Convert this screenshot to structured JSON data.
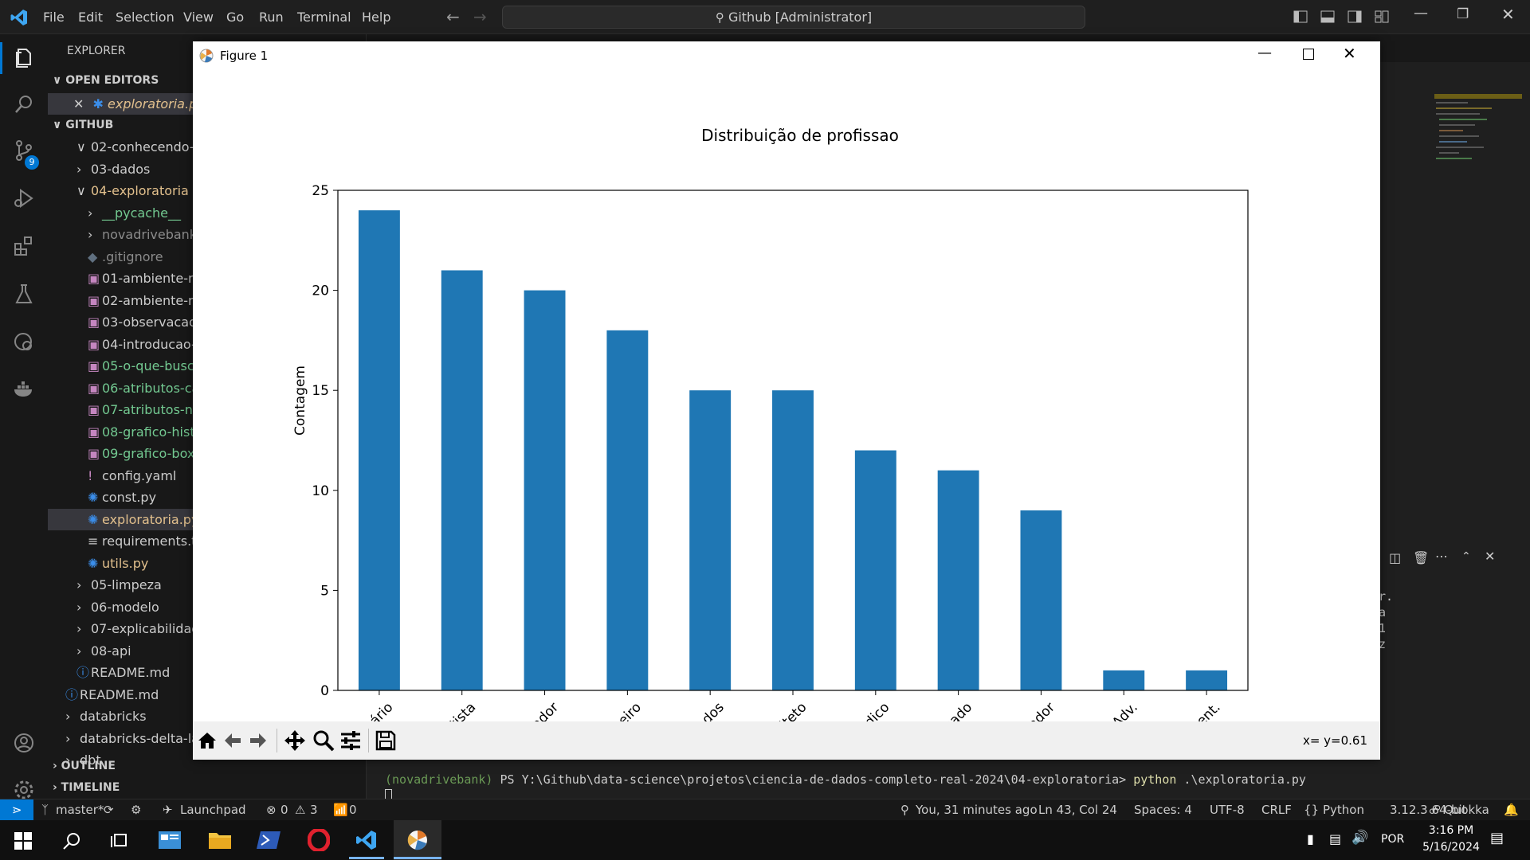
{
  "titlebar": {
    "menus": [
      "File",
      "Edit",
      "Selection",
      "View",
      "Go",
      "Run",
      "Terminal",
      "Help"
    ],
    "command_center": "Github [Administrator]"
  },
  "activity": {
    "scm_badge": "9"
  },
  "sidebar": {
    "explorer_label": "EXPLORER",
    "open_editors_label": "OPEN EDITORS",
    "open_file": "exploratoria.py",
    "root_label": "GITHUB",
    "items": [
      {
        "label": "02-conhecendo-",
        "type": "folder-open"
      },
      {
        "label": "03-dados",
        "type": "folder"
      },
      {
        "label": "04-exploratoria",
        "type": "folder-open"
      },
      {
        "label": "__pycache__",
        "type": "folder"
      },
      {
        "label": "novadrivebank",
        "type": "folder"
      },
      {
        "label": ".gitignore",
        "type": "file"
      },
      {
        "label": "01-ambiente-n",
        "type": "nb"
      },
      {
        "label": "02-ambiente-n",
        "type": "nb"
      },
      {
        "label": "03-observacao.",
        "type": "nb"
      },
      {
        "label": "04-introducao-",
        "type": "nb"
      },
      {
        "label": "05-o-que-busc",
        "type": "nb"
      },
      {
        "label": "06-atributos-ca",
        "type": "nb"
      },
      {
        "label": "07-atributos-nu",
        "type": "nb"
      },
      {
        "label": "08-grafico-histo",
        "type": "nb"
      },
      {
        "label": "09-grafico-boxp",
        "type": "nb"
      },
      {
        "label": "config.yaml",
        "type": "yaml"
      },
      {
        "label": "const.py",
        "type": "py"
      },
      {
        "label": "exploratoria.py",
        "type": "py"
      },
      {
        "label": "requirements.tx",
        "type": "txt"
      },
      {
        "label": "utils.py",
        "type": "py"
      },
      {
        "label": "05-limpeza",
        "type": "folder"
      },
      {
        "label": "06-modelo",
        "type": "folder"
      },
      {
        "label": "07-explicabilidad",
        "type": "folder"
      },
      {
        "label": "08-api",
        "type": "folder"
      },
      {
        "label": "README.md",
        "type": "info"
      },
      {
        "label": "README.md",
        "type": "info"
      },
      {
        "label": "databricks",
        "type": "folder"
      },
      {
        "label": "databricks-delta-lak",
        "type": "folder"
      },
      {
        "label": "dbt",
        "type": "folder"
      }
    ],
    "outline_label": "OUTLINE",
    "timeline_label": "TIMELINE"
  },
  "terminal": {
    "line1_env": "(novadrivebank)",
    "line1_prompt": " PS Y:\\Github\\data-science\\projetos\\ciencia-de-dados-completo-real-2024\\04-exploratoria> ",
    "line1_cmd": "python",
    "line1_arg": " .\\exploratoria.py",
    "right_fragments": [
      "r.",
      "a",
      "1",
      "z"
    ]
  },
  "figure": {
    "title": "Figure 1",
    "coords": "x= y=0.61"
  },
  "chart_data": {
    "type": "bar",
    "title": "Distribuição de profissao",
    "ylabel": "Contagem",
    "xlabel": "",
    "categories": [
      "Empresário",
      "Dentista",
      "Programador",
      "Engenheiro",
      "Cientista de Dados",
      "Arquiteto",
      "Médico",
      "Advogado",
      "Contador",
      "Adv.",
      "Dent."
    ],
    "values": [
      24,
      21,
      20,
      18,
      15,
      15,
      12,
      11,
      9,
      1,
      1
    ],
    "ylim": [
      0,
      25
    ],
    "yticks": [
      0,
      5,
      10,
      15,
      20,
      25
    ],
    "color": "#1f77b4",
    "grid": false
  },
  "statusbar": {
    "branch": "master*",
    "launchpad": "Launchpad",
    "errors": "0",
    "warnings": "3",
    "ports": "0",
    "blame": "You, 31 minutes ago",
    "position": "Ln 43, Col 24",
    "spaces": "Spaces: 4",
    "encoding": "UTF-8",
    "eol": "CRLF",
    "language": "Python",
    "interpreter": "3.12.3 64-bit",
    "quokka": "Quokka"
  },
  "taskbar": {
    "language": "POR",
    "time": "3:16 PM",
    "date": "5/16/2024"
  }
}
